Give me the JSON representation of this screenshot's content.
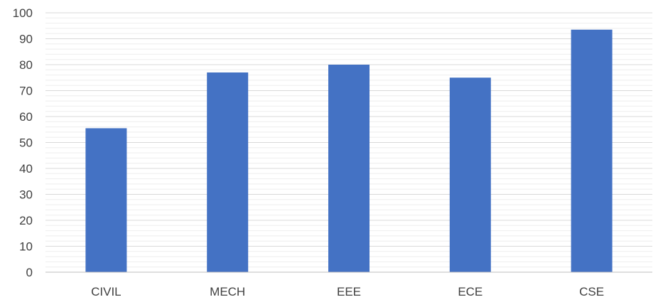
{
  "chart_data": {
    "type": "bar",
    "title": "",
    "xlabel": "",
    "ylabel": "",
    "categories": [
      "CIVIL",
      "MECH",
      "EEE",
      "ECE",
      "CSE"
    ],
    "values": [
      55.5,
      77,
      80,
      75,
      93.5
    ],
    "ylim": [
      0,
      100
    ],
    "y_ticks": [
      "0",
      "10",
      "20",
      "30",
      "40",
      "50",
      "60",
      "70",
      "80",
      "90",
      "100"
    ],
    "grid": true,
    "minor_grid": true,
    "legend": "none",
    "bar_color": "#4472C4",
    "gridline_color": "#d9d9d9"
  }
}
